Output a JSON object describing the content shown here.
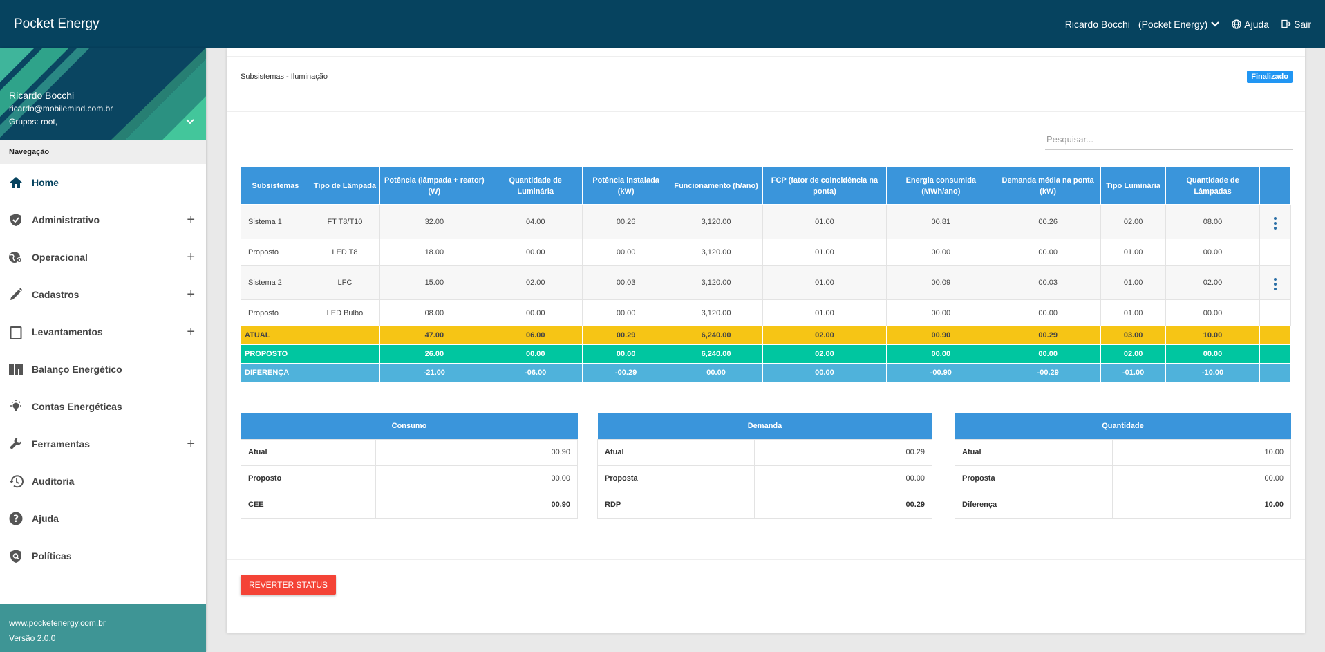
{
  "header": {
    "brand": "Pocket Energy",
    "user": "Ricardo Bocchi",
    "company": "(Pocket Energy)",
    "help": "Ajuda",
    "logout": "Sair"
  },
  "profile": {
    "name": "Ricardo Bocchi",
    "email": "ricardo@mobilemind.com.br",
    "groups": "Grupos: root,"
  },
  "nav": {
    "header": "Navegação",
    "items": [
      {
        "label": "Home",
        "icon": "home-icon"
      },
      {
        "label": "Administrativo",
        "icon": "shield-icon"
      },
      {
        "label": "Operacional",
        "icon": "globe-gear-icon"
      },
      {
        "label": "Cadastros",
        "icon": "pencil-icon"
      },
      {
        "label": "Levantamentos",
        "icon": "clipboard-icon"
      },
      {
        "label": "Balanço Energético",
        "icon": "dashboard-icon"
      },
      {
        "label": "Contas Energéticas",
        "icon": "bulb-icon"
      },
      {
        "label": "Ferramentas",
        "icon": "wrench-icon"
      },
      {
        "label": "Auditoria",
        "icon": "history-icon"
      },
      {
        "label": "Ajuda",
        "icon": "help-icon"
      },
      {
        "label": "Políticas",
        "icon": "policy-icon"
      }
    ]
  },
  "footer": {
    "site": "www.pocketenergy.com.br",
    "version": "Versão 2.0.0"
  },
  "page": {
    "breadcrumb": "Subsistemas - Iluminação",
    "status": "Finalizado",
    "search_placeholder": "Pesquisar...",
    "revert_label": "REVERTER STATUS"
  },
  "table": {
    "headers": [
      "Subsistemas",
      "Tipo de Lâmpada",
      "Potência (lâmpada + reator) (W)",
      "Quantidade de Luminária",
      "Potência instalada (kW)",
      "Funcionamento (h/ano)",
      "FCP (fator de coincidência na ponta)",
      "Energia consumida (MWh/ano)",
      "Demanda média na ponta (kW)",
      "Tipo Luminária",
      "Quantidade de Lâmpadas"
    ],
    "rows": [
      [
        "Sistema 1",
        "FT T8/T10",
        "32.00",
        "04.00",
        "00.26",
        "3,120.00",
        "01.00",
        "00.81",
        "00.26",
        "02.00",
        "08.00"
      ],
      [
        "Proposto",
        "LED T8",
        "18.00",
        "00.00",
        "00.00",
        "3,120.00",
        "01.00",
        "00.00",
        "00.00",
        "01.00",
        "00.00"
      ],
      [
        "Sistema 2",
        "LFC",
        "15.00",
        "02.00",
        "00.03",
        "3,120.00",
        "01.00",
        "00.09",
        "00.03",
        "01.00",
        "02.00"
      ],
      [
        "Proposto",
        "LED Bulbo",
        "08.00",
        "00.00",
        "00.00",
        "3,120.00",
        "01.00",
        "00.00",
        "00.00",
        "01.00",
        "00.00"
      ]
    ],
    "totals": [
      [
        "ATUAL",
        "",
        "47.00",
        "06.00",
        "00.29",
        "6,240.00",
        "02.00",
        "00.90",
        "00.29",
        "03.00",
        "10.00"
      ],
      [
        "PROPOSTO",
        "",
        "26.00",
        "00.00",
        "00.00",
        "6,240.00",
        "02.00",
        "00.00",
        "00.00",
        "02.00",
        "00.00"
      ],
      [
        "DIFERENÇA",
        "",
        "-21.00",
        "-06.00",
        "-00.29",
        "00.00",
        "00.00",
        "-00.90",
        "-00.29",
        "-01.00",
        "-10.00"
      ]
    ],
    "colors": {
      "atual": "#f6c515",
      "proposto": "#00c6a0",
      "diferenca": "#4fb2db",
      "header": "#3a95db"
    }
  },
  "summary": [
    {
      "title": "Consumo",
      "rows": [
        [
          "Atual",
          "00.90"
        ],
        [
          "Proposto",
          "00.00"
        ],
        [
          "CEE",
          "00.90"
        ]
      ]
    },
    {
      "title": "Demanda",
      "rows": [
        [
          "Atual",
          "00.29"
        ],
        [
          "Proposta",
          "00.00"
        ],
        [
          "RDP",
          "00.29"
        ]
      ]
    },
    {
      "title": "Quantidade",
      "rows": [
        [
          "Atual",
          "10.00"
        ],
        [
          "Proposta",
          "00.00"
        ],
        [
          "Diferença",
          "10.00"
        ]
      ]
    }
  ]
}
